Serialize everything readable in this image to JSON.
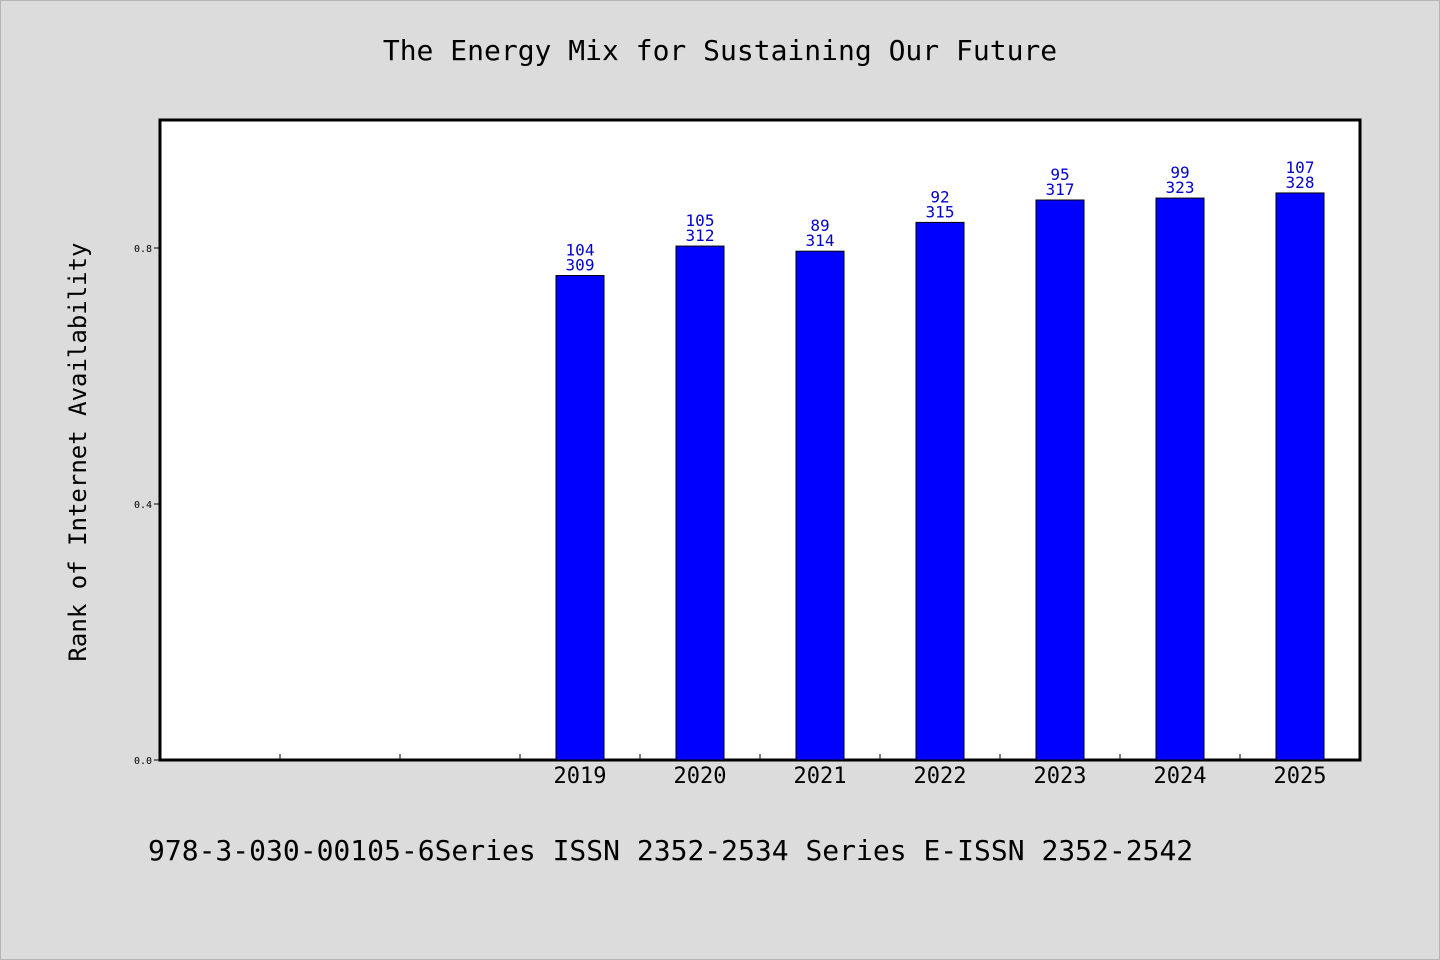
{
  "chart_data": {
    "type": "bar",
    "title": "The Energy Mix for Sustaining Our Future",
    "xlabel": "",
    "ylabel": "Rank of Internet Availability",
    "categories": [
      "",
      "",
      "",
      "2019",
      "2020",
      "2021",
      "2022",
      "2023",
      "2024",
      "2025"
    ],
    "values": [
      null,
      null,
      null,
      0.757,
      0.803,
      0.795,
      0.84,
      0.875,
      0.878,
      0.886
    ],
    "bar_labels_top": [
      "",
      "",
      "",
      "104",
      "105",
      "89",
      "92",
      "95",
      "99",
      "107"
    ],
    "bar_labels_bottom": [
      "",
      "",
      "",
      "309",
      "312",
      "314",
      "315",
      "317",
      "323",
      "328"
    ],
    "yticks": [
      0.0,
      0.4,
      0.8
    ],
    "ytick_labels": [
      "0.0",
      "0.4",
      "0.8"
    ],
    "ylim": [
      0,
      1.0
    ],
    "grid": false,
    "bar_color": "#0000ff",
    "label_color": "#0000cc",
    "background_color": "#dcdcdc",
    "plot_background": "#ffffff"
  },
  "footer": {
    "note": "978-3-030-00105-6Series ISSN 2352-2534 Series E-ISSN 2352-2542"
  }
}
